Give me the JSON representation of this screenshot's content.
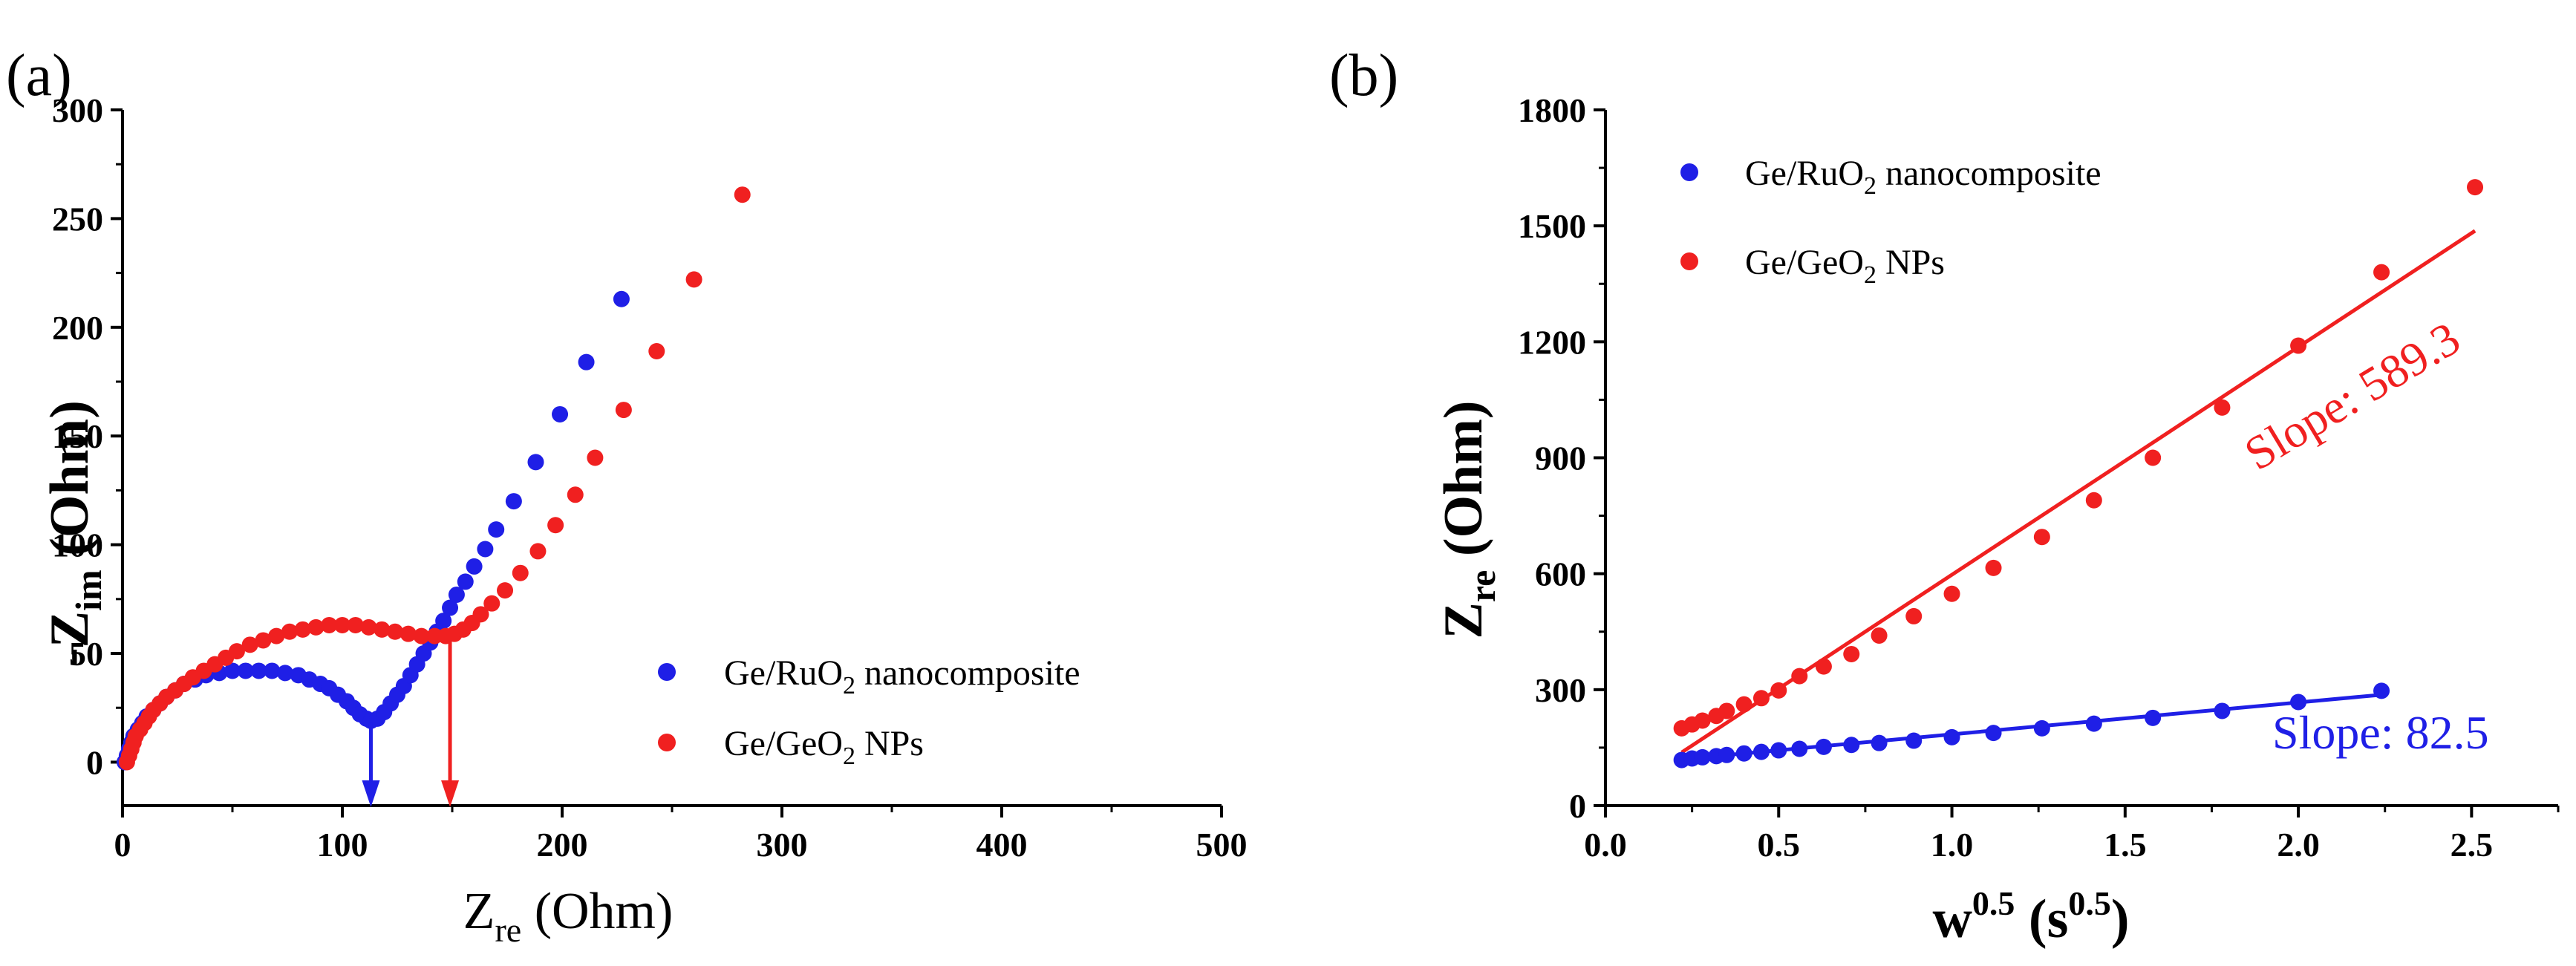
{
  "colors": {
    "blue": "#1f1fe6",
    "red": "#f02020",
    "axis": "#000000"
  },
  "chart_data": [
    {
      "type": "scatter",
      "panel_label": "(a)",
      "xlabel_main": "Z",
      "xlabel_sub": "re",
      "xlabel_unit": " (Ohm)",
      "ylabel_prefix": "-Z",
      "ylabel_sub": "im",
      "ylabel_unit": " (Ohm)",
      "xlim": [
        0,
        500
      ],
      "ylim": [
        -20,
        300
      ],
      "xticks": [
        0,
        100,
        200,
        300,
        400,
        500
      ],
      "yticks": [
        0,
        50,
        100,
        150,
        200,
        250,
        300
      ],
      "legend": [
        {
          "pre": "Ge/RuO",
          "sub": "2",
          "post": " nanocomposite",
          "color": "blue"
        },
        {
          "pre": "Ge/GeO",
          "sub": "2",
          "post": " NPs",
          "color": "red"
        }
      ],
      "arrows": [
        {
          "x": 113,
          "color": "blue"
        },
        {
          "x": 149,
          "color": "red"
        }
      ],
      "series": [
        {
          "name": "Ge/RuO2 nanocomposite",
          "color": "blue",
          "x": [
            1,
            2,
            3,
            4,
            5,
            7,
            9,
            11,
            14,
            17,
            20,
            24,
            28,
            33,
            38,
            44,
            50,
            56,
            62,
            68,
            74,
            80,
            85,
            90,
            94,
            98,
            102,
            105,
            108,
            111,
            113,
            116,
            119,
            122,
            125,
            128,
            131,
            134,
            137,
            140,
            143,
            146,
            149,
            152,
            156,
            160,
            165,
            170,
            178,
            188,
            199,
            211,
            227
          ],
          "y": [
            0,
            3,
            6,
            9,
            12,
            15,
            18,
            21,
            24,
            27,
            30,
            33,
            36,
            38,
            40,
            41,
            42,
            42,
            42,
            42,
            41,
            40,
            38,
            36,
            34,
            31,
            28,
            25,
            22,
            20,
            19,
            20,
            23,
            27,
            31,
            35,
            40,
            45,
            50,
            55,
            60,
            65,
            71,
            77,
            83,
            90,
            98,
            107,
            120,
            138,
            160,
            184,
            213
          ]
        },
        {
          "name": "Ge/GeO2 NPs",
          "color": "red",
          "x": [
            2,
            3,
            4,
            5,
            6,
            8,
            10,
            12,
            14,
            17,
            20,
            24,
            28,
            32,
            37,
            42,
            47,
            52,
            58,
            64,
            70,
            76,
            82,
            88,
            94,
            100,
            106,
            112,
            118,
            124,
            130,
            136,
            142,
            147,
            151,
            155,
            159,
            163,
            168,
            174,
            181,
            189,
            197,
            206,
            215,
            228,
            243,
            260,
            282
          ],
          "y": [
            0,
            3,
            6,
            9,
            12,
            15,
            18,
            21,
            24,
            27,
            30,
            33,
            36,
            39,
            42,
            45,
            48,
            51,
            54,
            56,
            58,
            60,
            61,
            62,
            63,
            63,
            63,
            62,
            61,
            60,
            59,
            58,
            58,
            58,
            59,
            61,
            64,
            68,
            73,
            79,
            87,
            97,
            109,
            123,
            140,
            162,
            189,
            222,
            261
          ]
        }
      ]
    },
    {
      "type": "scatter",
      "panel_label": "(b)",
      "xlabel_main": "w",
      "xlabel_sup": "0.5",
      "xlabel_unit_pre": " (s",
      "xlabel_unit_sup": "0.5",
      "xlabel_unit_post": ")",
      "ylabel_main": "Z",
      "ylabel_sub": "re",
      "ylabel_unit": " (Ohm)",
      "xlim": [
        0.0,
        2.75
      ],
      "ylim": [
        0,
        1800
      ],
      "xticks": [
        "0.0",
        "0.5",
        "1.0",
        "1.5",
        "2.0",
        "2.5"
      ],
      "yticks": [
        0,
        300,
        600,
        900,
        1200,
        1500,
        1800
      ],
      "legend": [
        {
          "pre": "Ge/RuO",
          "sub": "2",
          "post": " nanocomposite",
          "color": "blue"
        },
        {
          "pre": "Ge/GeO",
          "sub": "2",
          "post": " NPs",
          "color": "red"
        }
      ],
      "annotations": [
        {
          "text": "Slope: 589.3",
          "color": "red"
        },
        {
          "text": "Slope: 82.5",
          "color": "blue"
        }
      ],
      "series": [
        {
          "name": "Ge/RuO2 nanocomposite",
          "color": "blue",
          "x": [
            0.22,
            0.25,
            0.28,
            0.32,
            0.35,
            0.4,
            0.45,
            0.5,
            0.56,
            0.63,
            0.71,
            0.79,
            0.89,
            1.0,
            1.12,
            1.26,
            1.41,
            1.58,
            1.78,
            2.0,
            2.24
          ],
          "y": [
            118,
            122,
            125,
            128,
            131,
            135,
            139,
            143,
            147,
            152,
            157,
            162,
            168,
            177,
            188,
            200,
            212,
            227,
            245,
            268,
            297
          ],
          "fit": {
            "slope": 82.5,
            "intercept": 102,
            "x_range": [
              0.22,
              2.24
            ]
          }
        },
        {
          "name": "Ge/GeO2 NPs",
          "color": "red",
          "x": [
            0.22,
            0.25,
            0.28,
            0.32,
            0.35,
            0.4,
            0.45,
            0.5,
            0.56,
            0.63,
            0.71,
            0.79,
            0.89,
            1.0,
            1.12,
            1.26,
            1.41,
            1.58,
            1.78,
            2.0,
            2.24,
            2.51
          ],
          "y": [
            200,
            210,
            220,
            232,
            245,
            262,
            278,
            298,
            335,
            360,
            392,
            440,
            490,
            548,
            615,
            695,
            790,
            900,
            1030,
            1190,
            1380,
            1600
          ],
          "fit": {
            "slope": 589.3,
            "intercept": 8,
            "x_range": [
              0.22,
              2.51
            ]
          }
        }
      ]
    }
  ]
}
